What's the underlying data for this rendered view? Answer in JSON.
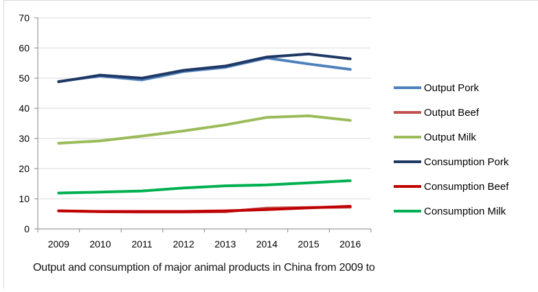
{
  "chart_data": {
    "type": "line",
    "title": "",
    "xlabel": "",
    "ylabel": "",
    "caption": "Output and consumption of major animal products in China from 2009 to",
    "categories": [
      "2009",
      "2010",
      "2011",
      "2012",
      "2013",
      "2014",
      "2015",
      "2016"
    ],
    "ylim": [
      0,
      70
    ],
    "yticks": [
      "0",
      "10",
      "20",
      "30",
      "40",
      "50",
      "60",
      "70"
    ],
    "grid": "horizontal",
    "legend_position": "right",
    "series": [
      {
        "name": "Output Pork",
        "color": "#4f81bd",
        "values": [
          48.9,
          50.7,
          49.4,
          52.2,
          53.6,
          56.7,
          54.7,
          52.9
        ]
      },
      {
        "name": "Output Beef",
        "color": "#c0504d",
        "values": [
          6.0,
          5.7,
          5.6,
          5.6,
          5.7,
          6.9,
          7.1,
          7.2
        ]
      },
      {
        "name": "Output Milk",
        "color": "#9bbb59",
        "values": [
          28.4,
          29.2,
          30.8,
          32.5,
          34.5,
          37.0,
          37.5,
          36.0
        ]
      },
      {
        "name": "Consumption Pork",
        "color": "#1f3864",
        "values": [
          48.8,
          51.0,
          50.0,
          52.6,
          54.0,
          57.0,
          58.0,
          56.4
        ]
      },
      {
        "name": "Consumption Beef",
        "color": "#c00000",
        "values": [
          6.0,
          5.8,
          5.8,
          5.8,
          6.0,
          6.4,
          7.0,
          7.5
        ]
      },
      {
        "name": "Consumption Milk",
        "color": "#00b050",
        "values": [
          11.9,
          12.2,
          12.6,
          13.6,
          14.3,
          14.6,
          15.3,
          16.0
        ]
      }
    ]
  }
}
